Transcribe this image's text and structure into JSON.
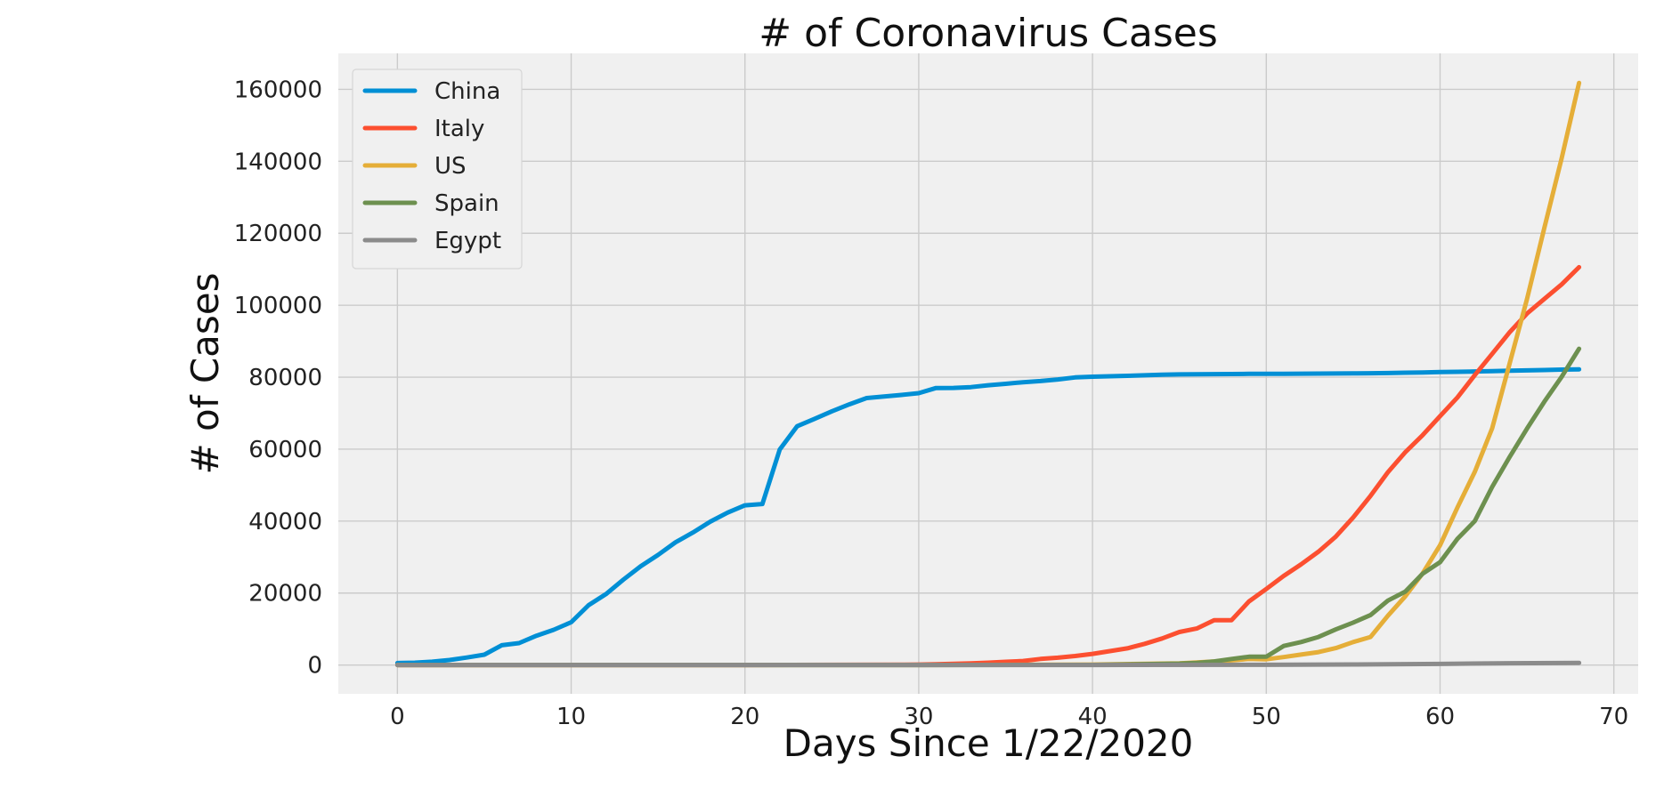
{
  "chart_data": {
    "type": "line",
    "title": "# of Coronavirus Cases",
    "xlabel": "Days Since 1/22/2020",
    "ylabel": "# of Cases",
    "xlim": [
      -3.4,
      71.4
    ],
    "ylim": [
      -8000,
      170000
    ],
    "x_ticks": [
      0,
      10,
      20,
      30,
      40,
      50,
      60,
      70
    ],
    "y_ticks": [
      0,
      20000,
      40000,
      60000,
      80000,
      100000,
      120000,
      140000,
      160000
    ],
    "x_tick_labels": [
      "0",
      "10",
      "20",
      "30",
      "40",
      "50",
      "60",
      "70"
    ],
    "y_tick_labels": [
      "0",
      "20000",
      "40000",
      "60000",
      "80000",
      "100000",
      "120000",
      "140000",
      "160000"
    ],
    "grid": true,
    "legend_position": "top-left",
    "series": [
      {
        "name": "China",
        "color": "#008fd5",
        "x": [
          0,
          1,
          2,
          3,
          4,
          5,
          6,
          7,
          8,
          9,
          10,
          11,
          12,
          13,
          14,
          15,
          16,
          17,
          18,
          19,
          20,
          21,
          22,
          23,
          24,
          25,
          26,
          27,
          28,
          29,
          30,
          31,
          32,
          33,
          34,
          35,
          36,
          37,
          38,
          39,
          40,
          41,
          42,
          43,
          44,
          45,
          46,
          47,
          48,
          49,
          50,
          51,
          52,
          53,
          54,
          55,
          56,
          57,
          58,
          59,
          60,
          61,
          62,
          63,
          64,
          65,
          66,
          67,
          68
        ],
        "values": [
          548,
          643,
          920,
          1406,
          2075,
          2877,
          5509,
          6087,
          8141,
          9802,
          11891,
          16630,
          19716,
          23707,
          27440,
          30587,
          34110,
          36814,
          39829,
          42354,
          44386,
          44759,
          59895,
          66358,
          68413,
          70513,
          72434,
          74211,
          74619,
          75077,
          75550,
          77001,
          77022,
          77241,
          77754,
          78166,
          78600,
          78928,
          79356,
          79932,
          80136,
          80261,
          80386,
          80537,
          80690,
          80770,
          80823,
          80860,
          80887,
          80921,
          80932,
          80945,
          80977,
          81003,
          81033,
          81058,
          81102,
          81156,
          81250,
          81305,
          81435,
          81498,
          81591,
          81661,
          81782,
          81897,
          81999,
          82122,
          82198
        ]
      },
      {
        "name": "Italy",
        "color": "#fc4f30",
        "x": [
          0,
          5,
          10,
          20,
          29,
          30,
          31,
          32,
          33,
          34,
          35,
          36,
          37,
          38,
          39,
          40,
          41,
          42,
          43,
          44,
          45,
          46,
          47,
          48,
          49,
          50,
          51,
          52,
          53,
          54,
          55,
          56,
          57,
          58,
          59,
          60,
          61,
          62,
          63,
          64,
          65,
          66,
          67,
          68
        ],
        "values": [
          0,
          0,
          0,
          3,
          76,
          124,
          229,
          322,
          453,
          655,
          888,
          1128,
          1694,
          2036,
          2502,
          3089,
          3858,
          4636,
          5883,
          7375,
          9172,
          10149,
          12462,
          12462,
          17660,
          21157,
          24747,
          27980,
          31506,
          35713,
          41035,
          47021,
          53578,
          59138,
          63927,
          69176,
          74386,
          80589,
          86498,
          92472,
          97689,
          101739,
          105792,
          110574
        ],
        "_note": ""
      },
      {
        "name": "US",
        "color": "#e5ae38",
        "x": [
          0,
          10,
          20,
          30,
          40,
          45,
          46,
          47,
          48,
          49,
          50,
          51,
          52,
          53,
          54,
          55,
          56,
          57,
          58,
          59,
          60,
          61,
          62,
          63,
          64,
          65,
          66,
          67,
          68
        ],
        "values": [
          1,
          8,
          13,
          16,
          124,
          472,
          696,
          1000,
          1300,
          1700,
          1600,
          2200,
          2900,
          3600,
          4700,
          6400,
          7800,
          13700,
          19100,
          25500,
          33300,
          43800,
          53700,
          65800,
          83800,
          101700,
          121500,
          140900,
          161800
        ]
      },
      {
        "name": "Spain",
        "color": "#6d904f",
        "x": [
          0,
          10,
          20,
          30,
          40,
          45,
          46,
          47,
          48,
          49,
          50,
          51,
          52,
          53,
          54,
          55,
          56,
          57,
          58,
          59,
          60,
          61,
          62,
          63,
          64,
          65,
          66,
          67,
          68
        ],
        "values": [
          0,
          0,
          2,
          2,
          45,
          400,
          600,
          1000,
          1700,
          2300,
          2300,
          5300,
          6400,
          7800,
          9900,
          11800,
          13900,
          17900,
          20400,
          25400,
          28600,
          35100,
          40000,
          49500,
          57800,
          65700,
          73200,
          80100,
          87900
        ]
      },
      {
        "name": "Egypt",
        "color": "#8b8b8b",
        "x": [
          0,
          20,
          30,
          40,
          50,
          55,
          60,
          64,
          68
        ],
        "values": [
          0,
          0,
          1,
          2,
          60,
          150,
          300,
          500,
          600
        ]
      }
    ]
  }
}
